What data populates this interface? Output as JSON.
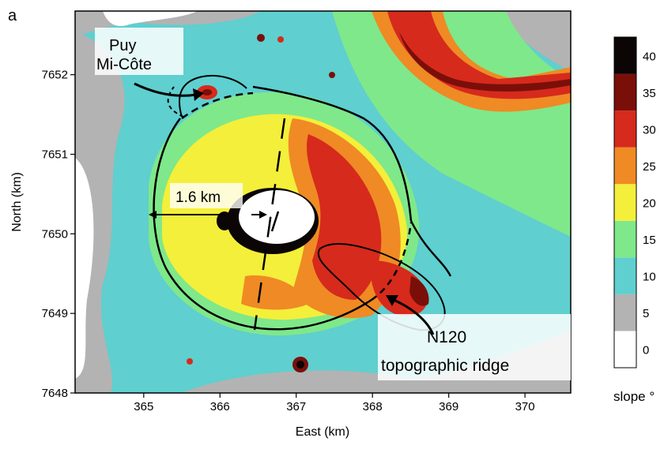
{
  "panel_label": "a",
  "axes": {
    "xlabel": "East (km)",
    "ylabel": "North (km)",
    "xlim": [
      364.1,
      370.6
    ],
    "ylim": [
      7648,
      7652.8
    ],
    "xticks": [
      365,
      366,
      367,
      368,
      369,
      370
    ],
    "yticks": [
      7648,
      7649,
      7650,
      7651,
      7652
    ]
  },
  "annotations": {
    "puy_line1": "Puy",
    "puy_line2": "Mi-Côte",
    "distance": "1.6 km",
    "ridge_line1": "N120",
    "ridge_line2": "topographic ridge"
  },
  "colorbar": {
    "title": "slope °",
    "ticks": [
      0,
      5,
      10,
      15,
      20,
      25,
      30,
      35,
      40
    ],
    "colors": [
      "#ffffff",
      "#b3b3b3",
      "#5fcfcf",
      "#7fe88a",
      "#f4ef3a",
      "#ef8a25",
      "#d62a1c",
      "#7a0f0a",
      "#0b0505"
    ]
  }
}
